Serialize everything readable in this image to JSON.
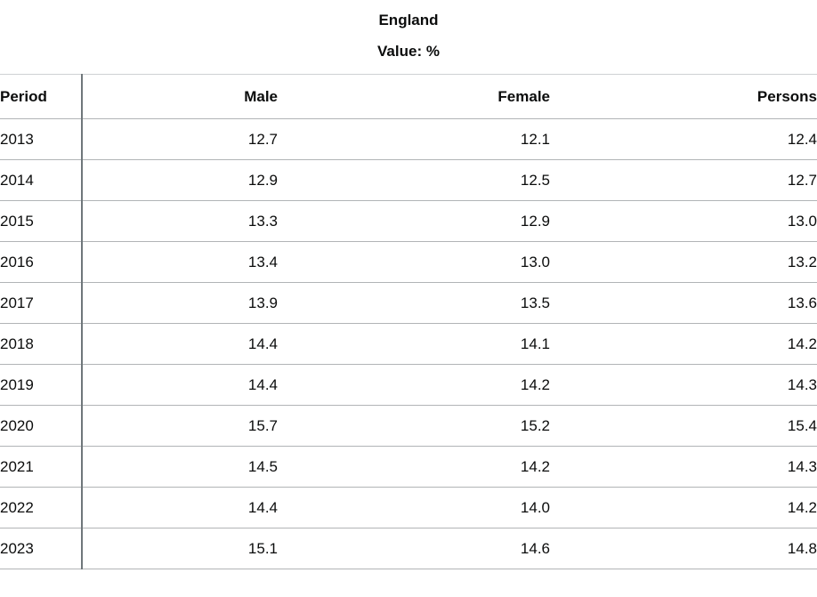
{
  "header": {
    "title": "England",
    "subtitle": "Value: %"
  },
  "table": {
    "columns": [
      "Period",
      "Male",
      "Female",
      "Persons"
    ],
    "rows": [
      {
        "period": "2013",
        "male": "12.7",
        "female": "12.1",
        "persons": "12.4"
      },
      {
        "period": "2014",
        "male": "12.9",
        "female": "12.5",
        "persons": "12.7"
      },
      {
        "period": "2015",
        "male": "13.3",
        "female": "12.9",
        "persons": "13.0"
      },
      {
        "period": "2016",
        "male": "13.4",
        "female": "13.0",
        "persons": "13.2"
      },
      {
        "period": "2017",
        "male": "13.9",
        "female": "13.5",
        "persons": "13.6"
      },
      {
        "period": "2018",
        "male": "14.4",
        "female": "14.1",
        "persons": "14.2"
      },
      {
        "period": "2019",
        "male": "14.4",
        "female": "14.2",
        "persons": "14.3"
      },
      {
        "period": "2020",
        "male": "15.7",
        "female": "15.2",
        "persons": "15.4"
      },
      {
        "period": "2021",
        "male": "14.5",
        "female": "14.2",
        "persons": "14.3"
      },
      {
        "period": "2022",
        "male": "14.4",
        "female": "14.0",
        "persons": "14.2"
      },
      {
        "period": "2023",
        "male": "15.1",
        "female": "14.6",
        "persons": "14.8"
      }
    ]
  }
}
